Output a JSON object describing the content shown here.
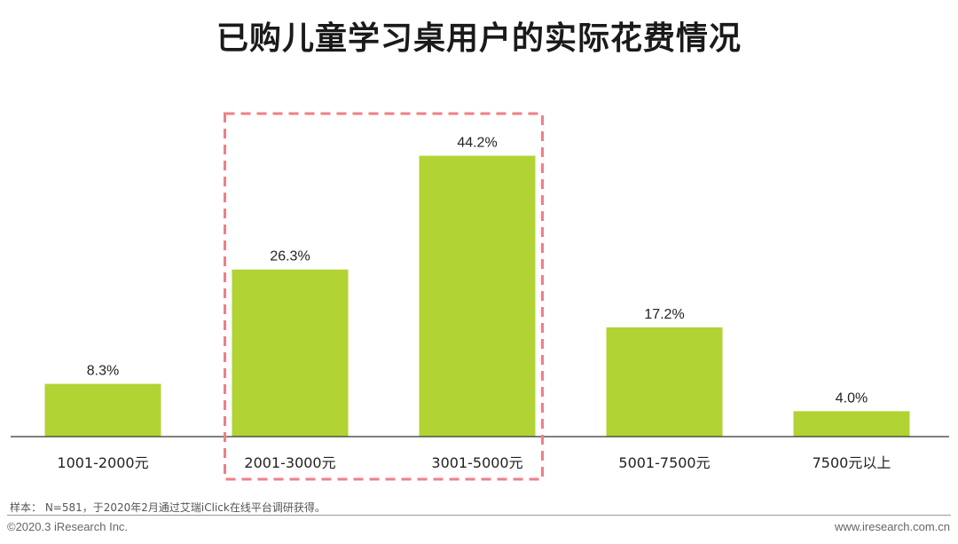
{
  "chart_data": {
    "type": "bar",
    "title": "已购儿童学习桌用户的实际花费情况",
    "categories": [
      "1001-2000元",
      "2001-3000元",
      "3001-5000元",
      "5001-7500元",
      "7500元以上"
    ],
    "values": [
      8.3,
      26.3,
      44.2,
      17.2,
      4.0
    ],
    "value_labels": [
      "8.3%",
      "26.3%",
      "44.2%",
      "17.2%",
      "4.0%"
    ],
    "unit": "%",
    "ylim": [
      0,
      50
    ],
    "grid": false,
    "legend": "none",
    "highlighted_categories": [
      "2001-3000元",
      "3001-5000元"
    ],
    "colors": {
      "bar": "#b1d334",
      "highlight_border": "#f07f84",
      "axis": "#333333"
    }
  },
  "footer": {
    "note": "样本： N=581，于2020年2月通过艾瑞iClick在线平台调研获得。",
    "copyright": "©2020.3 iResearch Inc.",
    "website": "www.iresearch.com.cn"
  }
}
